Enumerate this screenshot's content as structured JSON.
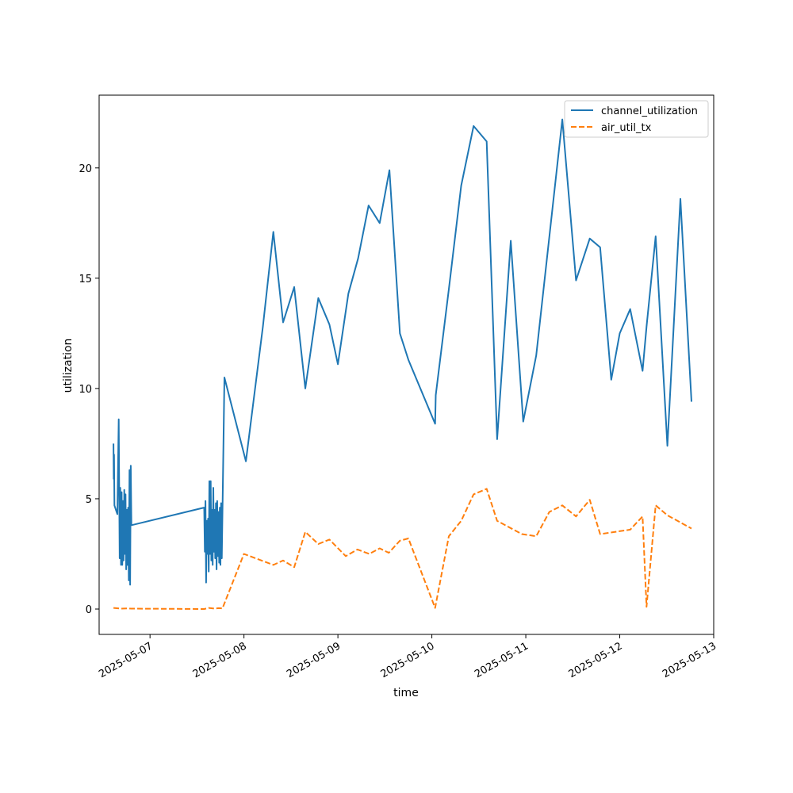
{
  "chart_data": {
    "type": "line",
    "title": "",
    "xlabel": "time",
    "ylabel": "utilization",
    "x_type": "datetime",
    "xlim": [
      "2025-05-06T11:00",
      "2025-05-13T00:00"
    ],
    "ylim": [
      -1.15,
      23.3
    ],
    "x_ticks": [
      "2025-05-07",
      "2025-05-08",
      "2025-05-09",
      "2025-05-10",
      "2025-05-11",
      "2025-05-12",
      "2025-05-13"
    ],
    "y_ticks": [
      0,
      5,
      10,
      15,
      20
    ],
    "grid": false,
    "legend_position": "top-right",
    "series": [
      {
        "name": "channel_utilization",
        "color": "#1f77b4",
        "style": "solid",
        "points": [
          [
            "2025-05-06T14:40",
            7.5
          ],
          [
            "2025-05-06T14:44",
            5.9
          ],
          [
            "2025-05-06T14:48",
            7.0
          ],
          [
            "2025-05-06T14:55",
            4.7
          ],
          [
            "2025-05-06T15:40",
            4.3
          ],
          [
            "2025-05-06T16:00",
            8.6
          ],
          [
            "2025-05-06T16:15",
            2.3
          ],
          [
            "2025-05-06T16:25",
            5.5
          ],
          [
            "2025-05-06T16:35",
            2.0
          ],
          [
            "2025-05-06T16:45",
            5.3
          ],
          [
            "2025-05-06T16:55",
            2.0
          ],
          [
            "2025-05-06T17:05",
            4.9
          ],
          [
            "2025-05-06T17:15",
            2.2
          ],
          [
            "2025-05-06T17:25",
            5.4
          ],
          [
            "2025-05-06T17:35",
            2.5
          ],
          [
            "2025-05-06T17:45",
            5.2
          ],
          [
            "2025-05-06T17:55",
            1.8
          ],
          [
            "2025-05-06T18:05",
            4.5
          ],
          [
            "2025-05-06T18:15",
            2.0
          ],
          [
            "2025-05-06T18:25",
            4.6
          ],
          [
            "2025-05-06T18:35",
            1.3
          ],
          [
            "2025-05-06T18:45",
            6.3
          ],
          [
            "2025-05-06T18:55",
            1.1
          ],
          [
            "2025-05-06T19:05",
            6.5
          ],
          [
            "2025-05-06T19:15",
            3.8
          ],
          [
            "2025-05-07T13:50",
            4.6
          ],
          [
            "2025-05-07T14:00",
            2.6
          ],
          [
            "2025-05-07T14:10",
            4.9
          ],
          [
            "2025-05-07T14:20",
            1.2
          ],
          [
            "2025-05-07T14:30",
            4.0
          ],
          [
            "2025-05-07T14:40",
            2.5
          ],
          [
            "2025-05-07T14:50",
            4.1
          ],
          [
            "2025-05-07T15:00",
            1.7
          ],
          [
            "2025-05-07T15:10",
            5.8
          ],
          [
            "2025-05-07T15:20",
            2.5
          ],
          [
            "2025-05-07T15:30",
            5.8
          ],
          [
            "2025-05-07T15:40",
            2.2
          ],
          [
            "2025-05-07T15:50",
            4.5
          ],
          [
            "2025-05-07T16:00",
            2.0
          ],
          [
            "2025-05-07T16:10",
            5.5
          ],
          [
            "2025-05-07T16:20",
            2.6
          ],
          [
            "2025-05-07T16:30",
            4.5
          ],
          [
            "2025-05-07T16:40",
            2.3
          ],
          [
            "2025-05-07T16:50",
            4.8
          ],
          [
            "2025-05-07T17:00",
            1.8
          ],
          [
            "2025-05-07T17:10",
            4.9
          ],
          [
            "2025-05-07T17:20",
            2.4
          ],
          [
            "2025-05-07T17:30",
            4.4
          ],
          [
            "2025-05-07T17:40",
            2.1
          ],
          [
            "2025-05-07T17:50",
            4.6
          ],
          [
            "2025-05-07T18:00",
            2.0
          ],
          [
            "2025-05-07T18:10",
            4.8
          ],
          [
            "2025-05-07T18:20",
            2.3
          ],
          [
            "2025-05-07T18:30",
            4.3
          ],
          [
            "2025-05-07T19:00",
            10.5
          ],
          [
            "2025-05-08T00:30",
            6.7
          ],
          [
            "2025-05-08T04:50",
            12.8
          ],
          [
            "2025-05-08T07:30",
            17.1
          ],
          [
            "2025-05-08T10:00",
            13.0
          ],
          [
            "2025-05-08T12:50",
            14.6
          ],
          [
            "2025-05-08T15:40",
            10.0
          ],
          [
            "2025-05-08T19:00",
            14.1
          ],
          [
            "2025-05-08T21:50",
            12.9
          ],
          [
            "2025-05-09T00:00",
            11.1
          ],
          [
            "2025-05-09T02:40",
            14.3
          ],
          [
            "2025-05-09T05:10",
            15.9
          ],
          [
            "2025-05-09T07:50",
            18.3
          ],
          [
            "2025-05-09T10:40",
            17.5
          ],
          [
            "2025-05-09T13:10",
            19.9
          ],
          [
            "2025-05-09T15:50",
            12.5
          ],
          [
            "2025-05-09T18:00",
            11.3
          ],
          [
            "2025-05-10T00:50",
            8.4
          ],
          [
            "2025-05-10T01:00",
            9.7
          ],
          [
            "2025-05-10T04:20",
            14.5
          ],
          [
            "2025-05-10T07:30",
            19.2
          ],
          [
            "2025-05-10T10:40",
            21.9
          ],
          [
            "2025-05-10T14:00",
            21.2
          ],
          [
            "2025-05-10T16:40",
            7.7
          ],
          [
            "2025-05-10T20:10",
            16.7
          ],
          [
            "2025-05-10T23:20",
            8.5
          ],
          [
            "2025-05-11T02:40",
            11.5
          ],
          [
            "2025-05-11T09:20",
            22.2
          ],
          [
            "2025-05-11T12:50",
            14.9
          ],
          [
            "2025-05-11T16:20",
            16.8
          ],
          [
            "2025-05-11T19:00",
            16.4
          ],
          [
            "2025-05-11T21:50",
            10.4
          ],
          [
            "2025-05-12T00:00",
            12.5
          ],
          [
            "2025-05-12T02:40",
            13.6
          ],
          [
            "2025-05-12T05:50",
            10.8
          ],
          [
            "2025-05-12T06:50",
            12.8
          ],
          [
            "2025-05-12T09:10",
            16.9
          ],
          [
            "2025-05-12T12:10",
            7.4
          ],
          [
            "2025-05-12T15:30",
            18.6
          ],
          [
            "2025-05-12T18:20",
            9.4
          ]
        ]
      },
      {
        "name": "air_util_tx",
        "color": "#ff7f0e",
        "style": "dashed",
        "points": [
          [
            "2025-05-06T14:40",
            0.05
          ],
          [
            "2025-05-06T16:30",
            0.02
          ],
          [
            "2025-05-06T18:00",
            0.03
          ],
          [
            "2025-05-06T19:15",
            0.02
          ],
          [
            "2025-05-07T13:50",
            0.0
          ],
          [
            "2025-05-07T15:00",
            0.05
          ],
          [
            "2025-05-07T16:30",
            0.02
          ],
          [
            "2025-05-07T17:30",
            0.04
          ],
          [
            "2025-05-07T18:30",
            0.03
          ],
          [
            "2025-05-08T00:00",
            2.5
          ],
          [
            "2025-05-08T07:30",
            2.0
          ],
          [
            "2025-05-08T10:00",
            2.2
          ],
          [
            "2025-05-08T12:50",
            1.9
          ],
          [
            "2025-05-08T15:40",
            3.5
          ],
          [
            "2025-05-08T19:00",
            2.95
          ],
          [
            "2025-05-08T21:50",
            3.15
          ],
          [
            "2025-05-09T02:00",
            2.4
          ],
          [
            "2025-05-09T05:00",
            2.7
          ],
          [
            "2025-05-09T08:00",
            2.5
          ],
          [
            "2025-05-09T10:40",
            2.75
          ],
          [
            "2025-05-09T13:00",
            2.55
          ],
          [
            "2025-05-09T15:50",
            3.1
          ],
          [
            "2025-05-09T18:00",
            3.2
          ],
          [
            "2025-05-10T00:50",
            0.05
          ],
          [
            "2025-05-10T04:20",
            3.3
          ],
          [
            "2025-05-10T07:30",
            4.0
          ],
          [
            "2025-05-10T10:40",
            5.2
          ],
          [
            "2025-05-10T14:00",
            5.45
          ],
          [
            "2025-05-10T16:40",
            4.0
          ],
          [
            "2025-05-10T23:00",
            3.4
          ],
          [
            "2025-05-11T02:40",
            3.3
          ],
          [
            "2025-05-11T06:00",
            4.4
          ],
          [
            "2025-05-11T09:20",
            4.7
          ],
          [
            "2025-05-11T12:50",
            4.2
          ],
          [
            "2025-05-11T16:20",
            4.95
          ],
          [
            "2025-05-11T19:00",
            3.4
          ],
          [
            "2025-05-12T02:40",
            3.6
          ],
          [
            "2025-05-12T05:50",
            4.2
          ],
          [
            "2025-05-12T06:50",
            0.1
          ],
          [
            "2025-05-12T09:10",
            4.7
          ],
          [
            "2025-05-12T12:10",
            4.25
          ],
          [
            "2025-05-12T18:20",
            3.65
          ]
        ]
      }
    ]
  }
}
